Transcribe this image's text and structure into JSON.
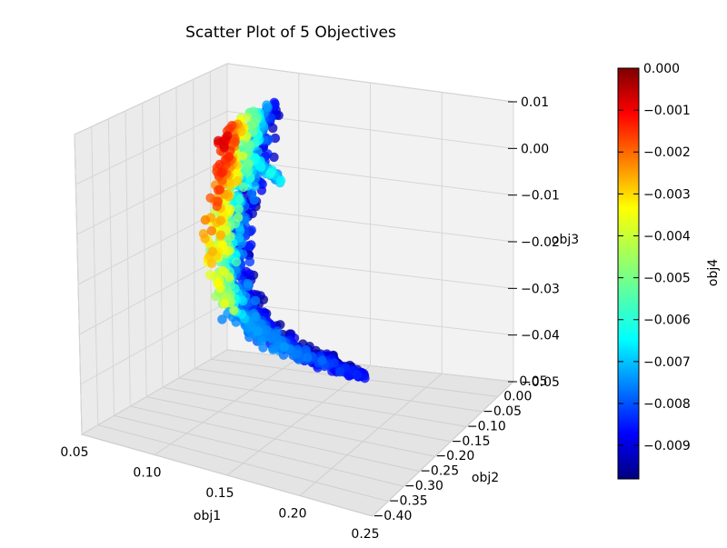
{
  "chart_data": {
    "type": "scatter",
    "projection": "3d",
    "title": "Scatter Plot of 5 Objectives",
    "axes": {
      "x": {
        "label": "obj1",
        "range": [
          0.05,
          0.25
        ],
        "ticks": [
          "0.05",
          "0.10",
          "0.15",
          "0.20",
          "0.25"
        ]
      },
      "y": {
        "label": "obj2",
        "range": [
          -0.4,
          0.05
        ],
        "ticks": [
          "−0.40",
          "−0.35",
          "−0.30",
          "−0.25",
          "−0.20",
          "−0.15",
          "−0.10",
          "−0.05",
          "0.00",
          "0.05"
        ]
      },
      "z": {
        "label": "obj3",
        "range": [
          -0.05,
          0.01
        ],
        "ticks": [
          "−0.05",
          "−0.04",
          "−0.03",
          "−0.02",
          "−0.01",
          "0.00",
          "0.01"
        ]
      }
    },
    "grid": true,
    "colorbar": {
      "label": "obj4",
      "colormap": "jet",
      "range": [
        -0.0098,
        0.0
      ],
      "ticks": [
        "0.000",
        "−0.001",
        "−0.002",
        "−0.003",
        "−0.004",
        "−0.005",
        "−0.006",
        "−0.007",
        "−0.008",
        "−0.009"
      ],
      "tick_values": [
        0.0,
        -0.001,
        -0.002,
        -0.003,
        -0.004,
        -0.005,
        -0.006,
        -0.007,
        -0.008,
        -0.009
      ]
    },
    "point_count_estimate": 1000,
    "color_by": "obj4"
  }
}
